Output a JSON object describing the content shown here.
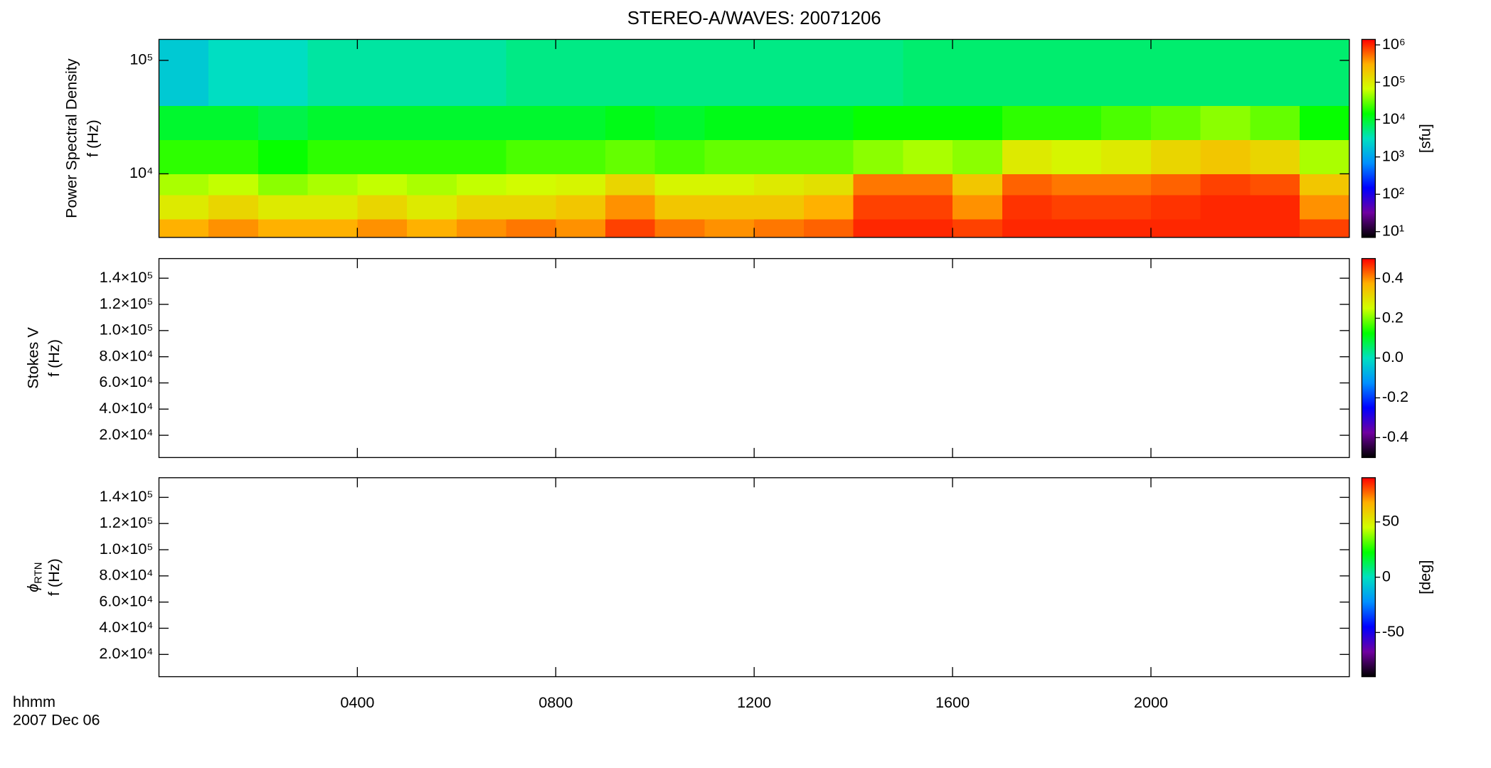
{
  "title": "STEREO-A/WAVES: 20071206",
  "colormap": [
    "#000000",
    "#7000a0",
    "#0000ff",
    "#0090ff",
    "#00e0c0",
    "#00ff00",
    "#d0ff00",
    "#ffb000",
    "#ff0000"
  ],
  "x_axis": {
    "xlim": [
      0,
      24
    ],
    "xticks": [
      {
        "value": 4,
        "label": "0400"
      },
      {
        "value": 8,
        "label": "0800"
      },
      {
        "value": 12,
        "label": "1200"
      },
      {
        "value": 16,
        "label": "1600"
      },
      {
        "value": 20,
        "label": "2000"
      }
    ],
    "label": "hhmm",
    "date": "2007 Dec 06"
  },
  "chart_data": [
    {
      "type": "heatmap",
      "ylabel_title": "Power Spectral Density",
      "ylabel": "f (Hz)",
      "ylim": [
        2750,
        153000
      ],
      "ylog": true,
      "yticks": [
        {
          "value": 10000,
          "label": "10⁴"
        },
        {
          "value": 100000,
          "label": "10⁵"
        }
      ],
      "x_bins": [
        0,
        1,
        2,
        3,
        4,
        5,
        6,
        7,
        8,
        9,
        10,
        11,
        12,
        13,
        14,
        15,
        16,
        17,
        18,
        19,
        20,
        21,
        22,
        23,
        24
      ],
      "y_bins": [
        2750,
        4000,
        6500,
        10000,
        20000,
        40000,
        153000
      ],
      "values": [
        [
          300000,
          400000,
          300000,
          300000,
          400000,
          300000,
          400000,
          500000,
          400000,
          800000,
          500000,
          400000,
          500000,
          600000,
          1000000,
          1000000,
          800000,
          1000000,
          1000000,
          1000000,
          1000000,
          1000000,
          1000000,
          800000
        ],
        [
          100000,
          150000,
          100000,
          100000,
          150000,
          100000,
          150000,
          150000,
          200000,
          400000,
          200000,
          200000,
          200000,
          300000,
          800000,
          800000,
          400000,
          900000,
          800000,
          800000,
          900000,
          1000000,
          1000000,
          400000
        ],
        [
          50000,
          60000,
          40000,
          50000,
          60000,
          50000,
          60000,
          70000,
          80000,
          150000,
          80000,
          80000,
          100000,
          120000,
          500000,
          500000,
          200000,
          600000,
          500000,
          500000,
          600000,
          800000,
          700000,
          200000
        ],
        [
          20000,
          20000,
          15000,
          20000,
          20000,
          20000,
          20000,
          25000,
          25000,
          30000,
          25000,
          30000,
          30000,
          30000,
          40000,
          50000,
          40000,
          100000,
          80000,
          100000,
          150000,
          200000,
          150000,
          50000
        ],
        [
          10000,
          10000,
          8000,
          10000,
          10000,
          10000,
          10000,
          10000,
          10000,
          12000,
          10000,
          12000,
          12000,
          12000,
          15000,
          15000,
          15000,
          20000,
          20000,
          25000,
          30000,
          40000,
          30000,
          15000
        ],
        [
          2000,
          3000,
          3000,
          4000,
          4000,
          4000,
          4000,
          5000,
          5000,
          5000,
          5000,
          5000,
          5000,
          5000,
          5000,
          6000,
          6000,
          6000,
          6000,
          6000,
          6000,
          6000,
          6000,
          6000
        ]
      ],
      "colorbar": {
        "clim": [
          7,
          1400000
        ],
        "log": true,
        "label": "[sfu]",
        "cticks": [
          {
            "value": 10,
            "label": "10¹"
          },
          {
            "value": 100,
            "label": "10²"
          },
          {
            "value": 1000,
            "label": "10³"
          },
          {
            "value": 10000,
            "label": "10⁴"
          },
          {
            "value": 100000,
            "label": "10⁵"
          },
          {
            "value": 1000000,
            "label": "10⁶"
          }
        ]
      }
    },
    {
      "type": "heatmap",
      "ylabel_title": "Stokes V",
      "ylabel": "f (Hz)",
      "ylim": [
        3000,
        155000
      ],
      "yticks": [
        {
          "value": 20000,
          "label": "2.0×10⁴"
        },
        {
          "value": 40000,
          "label": "4.0×10⁴"
        },
        {
          "value": 60000,
          "label": "6.0×10⁴"
        },
        {
          "value": 80000,
          "label": "8.0×10⁴"
        },
        {
          "value": 100000,
          "label": "1.0×10⁵"
        },
        {
          "value": 120000,
          "label": "1.2×10⁵"
        },
        {
          "value": 140000,
          "label": "1.4×10⁵"
        }
      ],
      "colorbar": {
        "clim": [
          -0.5,
          0.5
        ],
        "cticks": [
          -0.4,
          -0.2,
          {
            "value": 0,
            "label": "0.0"
          },
          0.2,
          0.4
        ]
      }
    },
    {
      "type": "heatmap",
      "ylabel_symbol": "ϕ",
      "ylabel_subscript": "RTN",
      "ylabel": "f (Hz)",
      "ylim": [
        3000,
        155000
      ],
      "yticks": [
        {
          "value": 20000,
          "label": "2.0×10⁴"
        },
        {
          "value": 40000,
          "label": "4.0×10⁴"
        },
        {
          "value": 60000,
          "label": "6.0×10⁴"
        },
        {
          "value": 80000,
          "label": "8.0×10⁴"
        },
        {
          "value": 100000,
          "label": "1.0×10⁵"
        },
        {
          "value": 120000,
          "label": "1.2×10⁵"
        },
        {
          "value": 140000,
          "label": "1.4×10⁵"
        }
      ],
      "colorbar": {
        "clim": [
          -90,
          90
        ],
        "label": "[deg]",
        "cticks": [
          -50,
          0,
          50
        ]
      }
    }
  ]
}
